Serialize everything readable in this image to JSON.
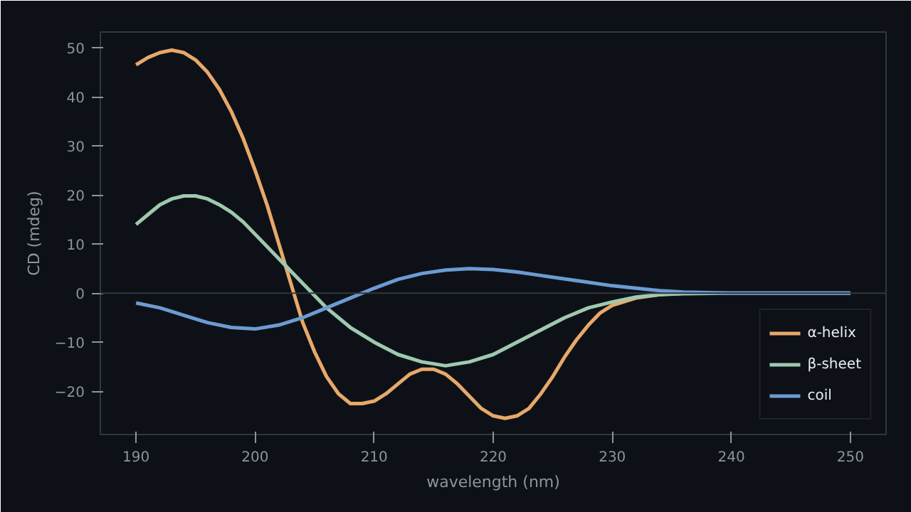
{
  "chart_data": {
    "type": "line",
    "xlabel": "wavelength (nm)",
    "ylabel": "CD (mdeg)",
    "xlim": [
      187,
      253
    ],
    "ylim": [
      -28.8,
      53.2
    ],
    "xticks": [
      190,
      200,
      210,
      220,
      230,
      240,
      250
    ],
    "yticks": [
      -20,
      -10,
      0,
      10,
      20,
      30,
      40,
      50
    ],
    "grid": false,
    "legend": "bottom right",
    "line_style": "solid",
    "ref_lines": [
      {
        "axis": "y",
        "value": 0,
        "color": "#30363d"
      }
    ],
    "series": [
      {
        "name": "α-helix",
        "color": "#e8a86a",
        "x": [
          190,
          191,
          192,
          193,
          194,
          195,
          196,
          197,
          198,
          199,
          200,
          201,
          202,
          203,
          204,
          205,
          206,
          207,
          208,
          209,
          210,
          211,
          212,
          213,
          214,
          215,
          216,
          217,
          218,
          219,
          220,
          221,
          222,
          223,
          224,
          225,
          226,
          227,
          228,
          229,
          230,
          232,
          234,
          236
        ],
        "values": [
          46.5,
          48,
          49,
          49.5,
          49,
          47.5,
          45,
          41.5,
          37,
          31.5,
          25,
          18,
          10,
          2,
          -6,
          -12,
          -17,
          -20.5,
          -22.5,
          -22.5,
          -22,
          -20.5,
          -18.5,
          -16.5,
          -15.5,
          -15.5,
          -16.5,
          -18.5,
          -21,
          -23.5,
          -25,
          -25.5,
          -25,
          -23.5,
          -20.5,
          -17,
          -13,
          -9.5,
          -6.5,
          -4,
          -2.5,
          -1,
          -0.3,
          0
        ]
      },
      {
        "name": "β-sheet",
        "color": "#9ec9b0",
        "x": [
          190,
          191,
          192,
          193,
          194,
          195,
          196,
          197,
          198,
          199,
          200,
          202,
          204,
          206,
          208,
          210,
          212,
          214,
          216,
          218,
          220,
          222,
          224,
          226,
          228,
          230,
          232,
          234,
          236,
          240,
          250
        ],
        "values": [
          14,
          16,
          18,
          19.2,
          19.8,
          19.8,
          19.2,
          18,
          16.5,
          14.5,
          12,
          7,
          2,
          -3,
          -7,
          -10,
          -12.5,
          -14,
          -14.8,
          -14,
          -12.5,
          -10,
          -7.5,
          -5,
          -3,
          -1.8,
          -0.8,
          -0.3,
          -0.1,
          0,
          0
        ]
      },
      {
        "name": "coil",
        "color": "#6c9bd2",
        "x": [
          190,
          192,
          194,
          196,
          198,
          200,
          202,
          204,
          206,
          208,
          210,
          212,
          214,
          216,
          218,
          220,
          222,
          224,
          226,
          228,
          230,
          232,
          234,
          236,
          240,
          250
        ],
        "values": [
          -2,
          -3,
          -4.5,
          -6,
          -7,
          -7.3,
          -6.5,
          -5,
          -3,
          -1,
          1,
          2.8,
          4,
          4.7,
          5,
          4.8,
          4.3,
          3.6,
          2.9,
          2.2,
          1.5,
          1,
          0.5,
          0.2,
          0,
          0
        ]
      }
    ]
  }
}
